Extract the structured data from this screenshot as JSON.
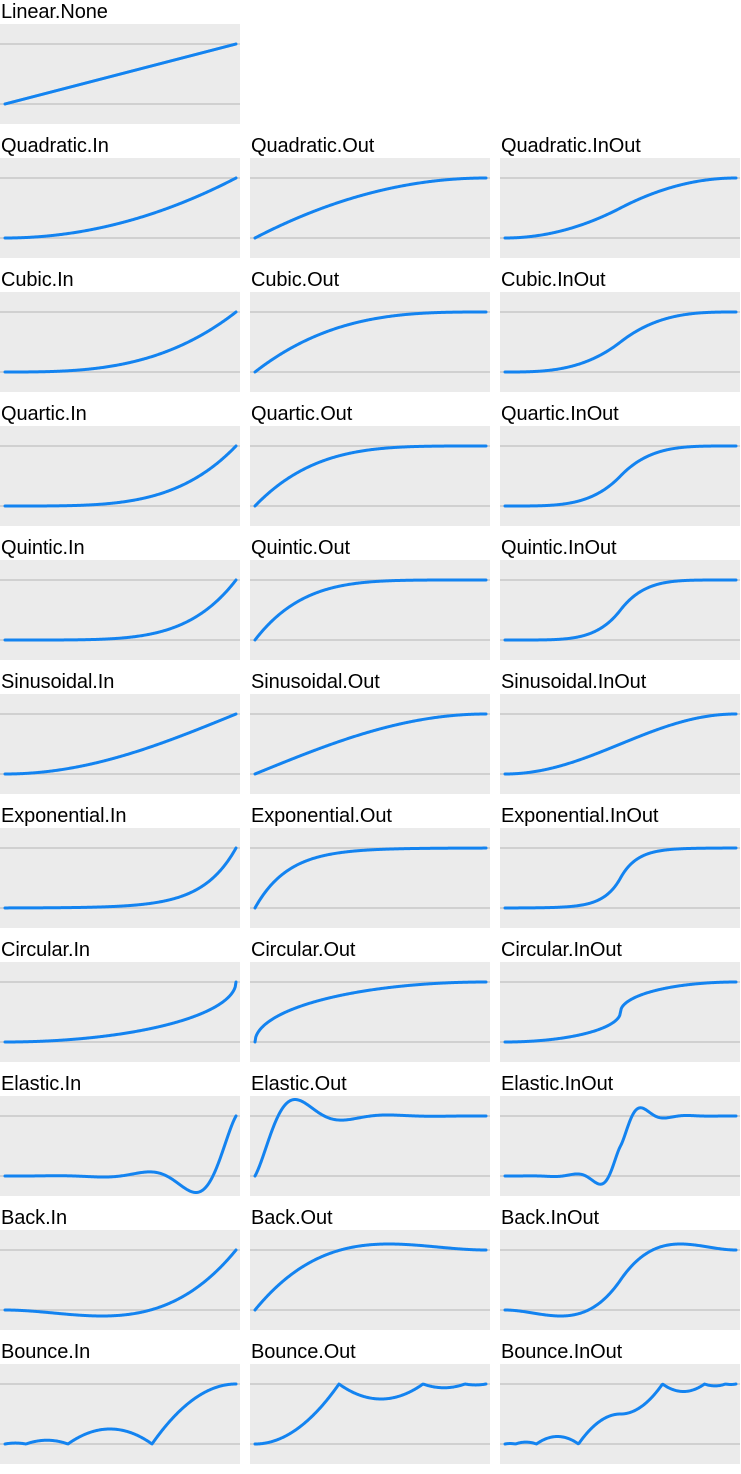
{
  "colors": {
    "panel_background": "#ebebeb",
    "reference_line": "#c8c8c8",
    "curve": "#1383f0",
    "text": "#000000"
  },
  "chart_data": [
    {
      "type": "line",
      "title": "Linear.None",
      "family": "Linear",
      "variant": "None",
      "x": [
        0,
        1
      ],
      "y_reference": [
        0,
        1
      ]
    },
    {
      "type": "line",
      "title": "Quadratic.In",
      "family": "Quadratic",
      "variant": "In",
      "x": [
        0,
        1
      ],
      "y_reference": [
        0,
        1
      ]
    },
    {
      "type": "line",
      "title": "Quadratic.Out",
      "family": "Quadratic",
      "variant": "Out",
      "x": [
        0,
        1
      ],
      "y_reference": [
        0,
        1
      ]
    },
    {
      "type": "line",
      "title": "Quadratic.InOut",
      "family": "Quadratic",
      "variant": "InOut",
      "x": [
        0,
        1
      ],
      "y_reference": [
        0,
        1
      ]
    },
    {
      "type": "line",
      "title": "Cubic.In",
      "family": "Cubic",
      "variant": "In",
      "x": [
        0,
        1
      ],
      "y_reference": [
        0,
        1
      ]
    },
    {
      "type": "line",
      "title": "Cubic.Out",
      "family": "Cubic",
      "variant": "Out",
      "x": [
        0,
        1
      ],
      "y_reference": [
        0,
        1
      ]
    },
    {
      "type": "line",
      "title": "Cubic.InOut",
      "family": "Cubic",
      "variant": "InOut",
      "x": [
        0,
        1
      ],
      "y_reference": [
        0,
        1
      ]
    },
    {
      "type": "line",
      "title": "Quartic.In",
      "family": "Quartic",
      "variant": "In",
      "x": [
        0,
        1
      ],
      "y_reference": [
        0,
        1
      ]
    },
    {
      "type": "line",
      "title": "Quartic.Out",
      "family": "Quartic",
      "variant": "Out",
      "x": [
        0,
        1
      ],
      "y_reference": [
        0,
        1
      ]
    },
    {
      "type": "line",
      "title": "Quartic.InOut",
      "family": "Quartic",
      "variant": "InOut",
      "x": [
        0,
        1
      ],
      "y_reference": [
        0,
        1
      ]
    },
    {
      "type": "line",
      "title": "Quintic.In",
      "family": "Quintic",
      "variant": "In",
      "x": [
        0,
        1
      ],
      "y_reference": [
        0,
        1
      ]
    },
    {
      "type": "line",
      "title": "Quintic.Out",
      "family": "Quintic",
      "variant": "Out",
      "x": [
        0,
        1
      ],
      "y_reference": [
        0,
        1
      ]
    },
    {
      "type": "line",
      "title": "Quintic.InOut",
      "family": "Quintic",
      "variant": "InOut",
      "x": [
        0,
        1
      ],
      "y_reference": [
        0,
        1
      ]
    },
    {
      "type": "line",
      "title": "Sinusoidal.In",
      "family": "Sinusoidal",
      "variant": "In",
      "x": [
        0,
        1
      ],
      "y_reference": [
        0,
        1
      ]
    },
    {
      "type": "line",
      "title": "Sinusoidal.Out",
      "family": "Sinusoidal",
      "variant": "Out",
      "x": [
        0,
        1
      ],
      "y_reference": [
        0,
        1
      ]
    },
    {
      "type": "line",
      "title": "Sinusoidal.InOut",
      "family": "Sinusoidal",
      "variant": "InOut",
      "x": [
        0,
        1
      ],
      "y_reference": [
        0,
        1
      ]
    },
    {
      "type": "line",
      "title": "Exponential.In",
      "family": "Exponential",
      "variant": "In",
      "x": [
        0,
        1
      ],
      "y_reference": [
        0,
        1
      ]
    },
    {
      "type": "line",
      "title": "Exponential.Out",
      "family": "Exponential",
      "variant": "Out",
      "x": [
        0,
        1
      ],
      "y_reference": [
        0,
        1
      ]
    },
    {
      "type": "line",
      "title": "Exponential.InOut",
      "family": "Exponential",
      "variant": "InOut",
      "x": [
        0,
        1
      ],
      "y_reference": [
        0,
        1
      ]
    },
    {
      "type": "line",
      "title": "Circular.In",
      "family": "Circular",
      "variant": "In",
      "x": [
        0,
        1
      ],
      "y_reference": [
        0,
        1
      ]
    },
    {
      "type": "line",
      "title": "Circular.Out",
      "family": "Circular",
      "variant": "Out",
      "x": [
        0,
        1
      ],
      "y_reference": [
        0,
        1
      ]
    },
    {
      "type": "line",
      "title": "Circular.InOut",
      "family": "Circular",
      "variant": "InOut",
      "x": [
        0,
        1
      ],
      "y_reference": [
        0,
        1
      ]
    },
    {
      "type": "line",
      "title": "Elastic.In",
      "family": "Elastic",
      "variant": "In",
      "x": [
        0,
        1
      ],
      "y_reference": [
        0,
        1
      ]
    },
    {
      "type": "line",
      "title": "Elastic.Out",
      "family": "Elastic",
      "variant": "Out",
      "x": [
        0,
        1
      ],
      "y_reference": [
        0,
        1
      ]
    },
    {
      "type": "line",
      "title": "Elastic.InOut",
      "family": "Elastic",
      "variant": "InOut",
      "x": [
        0,
        1
      ],
      "y_reference": [
        0,
        1
      ]
    },
    {
      "type": "line",
      "title": "Back.In",
      "family": "Back",
      "variant": "In",
      "x": [
        0,
        1
      ],
      "y_reference": [
        0,
        1
      ]
    },
    {
      "type": "line",
      "title": "Back.Out",
      "family": "Back",
      "variant": "Out",
      "x": [
        0,
        1
      ],
      "y_reference": [
        0,
        1
      ]
    },
    {
      "type": "line",
      "title": "Back.InOut",
      "family": "Back",
      "variant": "InOut",
      "x": [
        0,
        1
      ],
      "y_reference": [
        0,
        1
      ]
    },
    {
      "type": "line",
      "title": "Bounce.In",
      "family": "Bounce",
      "variant": "In",
      "x": [
        0,
        1
      ],
      "y_reference": [
        0,
        1
      ]
    },
    {
      "type": "line",
      "title": "Bounce.Out",
      "family": "Bounce",
      "variant": "Out",
      "x": [
        0,
        1
      ],
      "y_reference": [
        0,
        1
      ]
    },
    {
      "type": "line",
      "title": "Bounce.InOut",
      "family": "Bounce",
      "variant": "InOut",
      "x": [
        0,
        1
      ],
      "y_reference": [
        0,
        1
      ]
    }
  ]
}
